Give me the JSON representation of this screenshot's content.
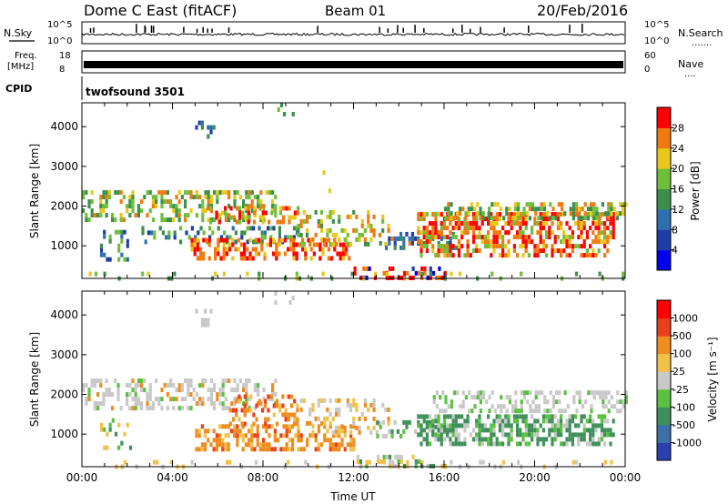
{
  "header": {
    "title": "Dome C East (fitACF)",
    "beam": "Beam 01",
    "date": "20/Feb/2016"
  },
  "status_panels": {
    "noise": {
      "left_label": "N.Sky",
      "left_ticks": [
        "10^5",
        "10^0"
      ],
      "right_ticks": [
        "10^5",
        "10^0"
      ],
      "right_label": "N.Search",
      "right_dots": "......."
    },
    "freq": {
      "left_label_1": "Freq.",
      "left_label_2": "[MHz]",
      "left_ticks": [
        "18",
        "8"
      ],
      "right_ticks": [
        "60",
        "0"
      ],
      "right_label": "Nave",
      "right_dots": "...."
    },
    "cpid": {
      "label": "CPID",
      "value": "twofsound 3501"
    }
  },
  "chart_data": [
    {
      "type": "heatmap",
      "name": "power",
      "ylabel": "Slant Range [km]",
      "xlabel": "",
      "yticks": [
        "1000",
        "2000",
        "3000",
        "4000"
      ],
      "ylim": [
        180,
        4600
      ],
      "xlim_hours": [
        0,
        24
      ],
      "colorbar": {
        "label": "Power [dB]",
        "ticks": [
          "4",
          "8",
          "12",
          "16",
          "20",
          "24",
          "28"
        ],
        "colors": [
          "#0000ee",
          "#1e3ea6",
          "#2e6fb0",
          "#3c8f4a",
          "#6fbe3a",
          "#e8c81a",
          "#f07a10",
          "#ff0000"
        ]
      }
    },
    {
      "type": "heatmap",
      "name": "velocity",
      "ylabel": "Slant Range [km]",
      "xlabel": "Time UT",
      "yticks": [
        "1000",
        "2000",
        "3000",
        "4000"
      ],
      "xticks": [
        "00:00",
        "04:00",
        "08:00",
        "12:00",
        "16:00",
        "20:00",
        "00:00"
      ],
      "ylim": [
        180,
        4600
      ],
      "xlim_hours": [
        0,
        24
      ],
      "colorbar": {
        "label": "Velocity [m s⁻¹]",
        "ticks": [
          "1000",
          "500",
          "100",
          "25",
          "-25",
          "-100",
          "-500",
          "-1000"
        ],
        "colors": [
          "#2a3fb0",
          "#3d6fa8",
          "#3f8f5a",
          "#59c040",
          "#c8c8c8",
          "#f2c14a",
          "#ef8c1e",
          "#e8401a",
          "#ff0000"
        ]
      }
    }
  ]
}
